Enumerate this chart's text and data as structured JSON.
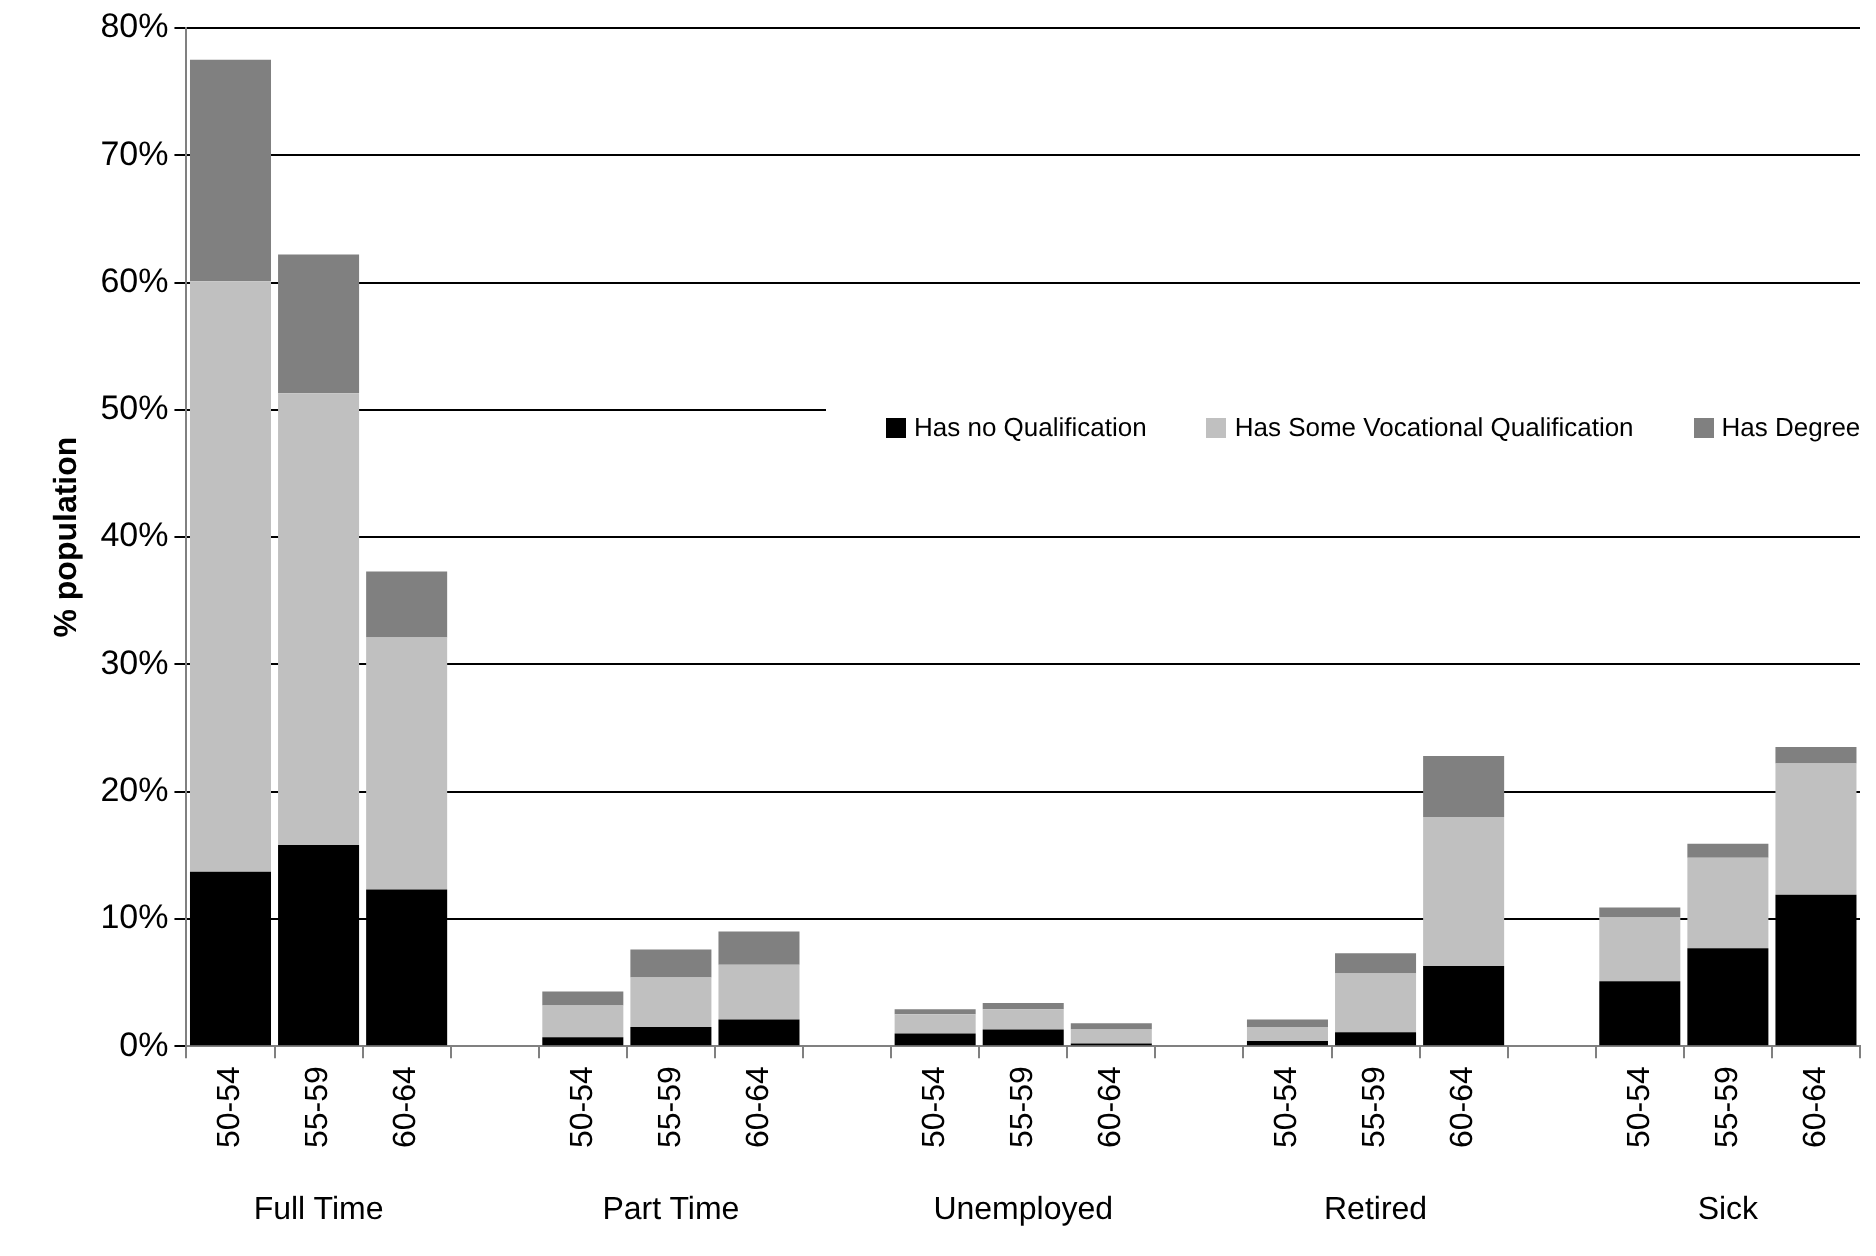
{
  "chart_data": {
    "type": "bar",
    "stacked": true,
    "ylabel": "% population",
    "categories": [
      "50-54",
      "55-59",
      "60-64",
      null,
      "50-54",
      "55-59",
      "60-64",
      null,
      "50-54",
      "55-59",
      "60-64",
      null,
      "50-54",
      "55-59",
      "60-64",
      null,
      "50-54",
      "55-59",
      "60-64"
    ],
    "series": [
      {
        "name": "Has no Qualification",
        "color": "#000000",
        "values": [
          13.7,
          15.8,
          12.3,
          null,
          0.7,
          1.5,
          2.1,
          null,
          1.0,
          1.3,
          0.2,
          null,
          0.4,
          1.1,
          6.3,
          null,
          5.1,
          7.7,
          11.9
        ]
      },
      {
        "name": "Has Some Vocational Qualification",
        "color": "#c0c0c0",
        "values": [
          46.4,
          35.5,
          19.8,
          null,
          2.5,
          3.9,
          4.3,
          null,
          1.5,
          1.6,
          1.1,
          null,
          1.1,
          4.6,
          11.7,
          null,
          5.0,
          7.1,
          10.3
        ]
      },
      {
        "name": "Has Degree",
        "color": "#808080",
        "values": [
          17.4,
          10.9,
          5.2,
          null,
          1.1,
          2.2,
          2.6,
          null,
          0.4,
          0.5,
          0.5,
          null,
          0.6,
          1.6,
          4.8,
          null,
          0.8,
          1.1,
          1.3
        ]
      }
    ],
    "ylim": [
      0,
      80
    ],
    "yticks": [
      {
        "value": 0,
        "label": "0%"
      },
      {
        "value": 10,
        "label": "10%"
      },
      {
        "value": 20,
        "label": "20%"
      },
      {
        "value": 30,
        "label": "30%"
      },
      {
        "value": 40,
        "label": "40%"
      },
      {
        "value": 50,
        "label": "50%"
      },
      {
        "value": 60,
        "label": "60%"
      },
      {
        "value": 70,
        "label": "70%"
      },
      {
        "value": 80,
        "label": "80%"
      }
    ],
    "grid": "y",
    "legend": "right",
    "annotations": [
      "Full Time",
      "Part Time",
      "Unemployed",
      "Retired",
      "Sick"
    ]
  }
}
